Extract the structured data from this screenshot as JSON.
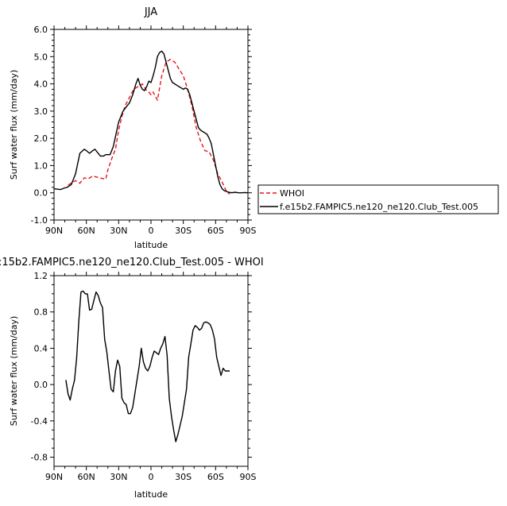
{
  "chart_data": [
    {
      "type": "line",
      "title": "JJA",
      "xlabel": "latitude",
      "ylabel": "Surf water flux (mm/day)",
      "xlim": [
        90,
        -90
      ],
      "ylim": [
        -1.0,
        6.0
      ],
      "xticks": [
        90,
        60,
        30,
        0,
        -30,
        -60,
        -90
      ],
      "xtick_labels": [
        "90N",
        "60N",
        "30N",
        "0",
        "30S",
        "60S",
        "90S"
      ],
      "yticks": [
        -1.0,
        0.0,
        1.0,
        2.0,
        3.0,
        4.0,
        5.0,
        6.0
      ],
      "ytick_labels": [
        "-1.0",
        "0.0",
        "1.0",
        "2.0",
        "3.0",
        "4.0",
        "5.0",
        "6.0"
      ],
      "legend_position": "right",
      "series": [
        {
          "name": "WHOI",
          "color": "#e8141e",
          "dash": "dashed",
          "x": [
            77,
            70,
            66,
            62,
            58,
            54,
            48,
            42,
            40,
            36,
            33,
            30,
            27,
            24,
            20,
            16,
            12,
            8,
            5,
            2,
            0,
            -2,
            -6,
            -10,
            -14,
            -18,
            -22,
            -26,
            -30,
            -34,
            -38,
            -42,
            -46,
            -50,
            -54,
            -58,
            -62,
            -66,
            -70,
            -73
          ],
          "y": [
            0.28,
            0.45,
            0.35,
            0.55,
            0.52,
            0.62,
            0.55,
            0.5,
            0.85,
            1.3,
            1.6,
            2.3,
            2.8,
            3.2,
            3.5,
            3.8,
            3.9,
            4.0,
            3.8,
            3.7,
            3.6,
            3.7,
            3.4,
            4.3,
            4.8,
            4.9,
            4.8,
            4.55,
            4.3,
            3.8,
            3.2,
            2.4,
            1.9,
            1.55,
            1.5,
            1.2,
            0.7,
            0.4,
            0.05,
            -0.05
          ]
        },
        {
          "name": "f.e15b2.FAMPIC5.ne120_ne120.Club_Test.005",
          "color": "#000000",
          "dash": "solid",
          "x": [
            90,
            88,
            86,
            84,
            82,
            80,
            78,
            74,
            70,
            66,
            62,
            60,
            57,
            54,
            52,
            50,
            47,
            44,
            42,
            38,
            35,
            30,
            26,
            23,
            20,
            17,
            14,
            12,
            10,
            8,
            6,
            4,
            2,
            0,
            -2,
            -4,
            -6,
            -8,
            -10,
            -12,
            -14,
            -16,
            -18,
            -20,
            -22,
            -24,
            -26,
            -28,
            -30,
            -32,
            -34,
            -36,
            -38,
            -40,
            -42,
            -44,
            -46,
            -48,
            -50,
            -52,
            -54,
            -56,
            -58,
            -60,
            -62,
            -64,
            -66,
            -68,
            -70,
            -72,
            -75,
            -78,
            -81,
            -84,
            -87,
            -90
          ],
          "y": [
            0.15,
            0.14,
            0.13,
            0.12,
            0.15,
            0.18,
            0.2,
            0.3,
            0.7,
            1.45,
            1.6,
            1.55,
            1.45,
            1.55,
            1.6,
            1.5,
            1.35,
            1.35,
            1.4,
            1.4,
            1.7,
            2.6,
            3.0,
            3.15,
            3.3,
            3.6,
            4.0,
            4.2,
            3.95,
            3.8,
            3.75,
            3.9,
            4.1,
            4.05,
            4.3,
            4.6,
            5.0,
            5.15,
            5.2,
            5.1,
            4.8,
            4.5,
            4.2,
            4.05,
            4.0,
            3.95,
            3.9,
            3.85,
            3.8,
            3.85,
            3.8,
            3.6,
            3.3,
            3.0,
            2.7,
            2.4,
            2.3,
            2.25,
            2.2,
            2.15,
            2.0,
            1.8,
            1.4,
            1.0,
            0.6,
            0.3,
            0.15,
            0.08,
            0.05,
            0.02,
            0.0,
            0.02,
            0.0,
            0.0,
            0.01,
            0.0
          ]
        }
      ]
    },
    {
      "type": "line",
      "title": ":15b2.FAMPIC5.ne120_ne120.Club_Test.005 - WHOI",
      "xlabel": "latitude",
      "ylabel": "Surf water flux (mm/day)",
      "xlim": [
        90,
        -90
      ],
      "ylim": [
        -0.9,
        1.2
      ],
      "xticks": [
        90,
        60,
        30,
        0,
        -30,
        -60,
        -90
      ],
      "xtick_labels": [
        "90N",
        "60N",
        "30N",
        "0",
        "30S",
        "60S",
        "90S"
      ],
      "yticks": [
        -0.8,
        -0.4,
        0.0,
        0.4,
        0.8,
        1.2
      ],
      "ytick_labels": [
        "-0.8",
        "-0.4",
        "0.0",
        "0.4",
        "0.8",
        "1.2"
      ],
      "series": [
        {
          "color": "#000000",
          "dash": "solid",
          "x": [
            79,
            77,
            75,
            73,
            71,
            69,
            67,
            65,
            63,
            61,
            59,
            57,
            55,
            53,
            51,
            49,
            47,
            45,
            43,
            41,
            39,
            37,
            35,
            33,
            31,
            29,
            27,
            25,
            23,
            21,
            19,
            17,
            15,
            13,
            11,
            9,
            7,
            5,
            3,
            1,
            -1,
            -3,
            -5,
            -7,
            -9,
            -11,
            -13,
            -15,
            -17,
            -19,
            -21,
            -23,
            -25,
            -27,
            -29,
            -31,
            -33,
            -35,
            -37,
            -39,
            -41,
            -43,
            -45,
            -47,
            -49,
            -51,
            -53,
            -55,
            -57,
            -59,
            -61,
            -63,
            -65,
            -67,
            -69,
            -71,
            -73
          ],
          "y": [
            0.05,
            -0.1,
            -0.17,
            -0.05,
            0.05,
            0.3,
            0.7,
            1.02,
            1.03,
            1.0,
            1.0,
            0.82,
            0.83,
            0.93,
            1.02,
            0.98,
            0.9,
            0.85,
            0.5,
            0.36,
            0.15,
            -0.05,
            -0.08,
            0.15,
            0.27,
            0.2,
            -0.15,
            -0.2,
            -0.22,
            -0.32,
            -0.32,
            -0.25,
            -0.1,
            0.05,
            0.2,
            0.4,
            0.25,
            0.18,
            0.15,
            0.2,
            0.3,
            0.37,
            0.35,
            0.33,
            0.4,
            0.45,
            0.53,
            0.32,
            -0.15,
            -0.35,
            -0.5,
            -0.63,
            -0.55,
            -0.45,
            -0.35,
            -0.2,
            -0.05,
            0.3,
            0.45,
            0.6,
            0.65,
            0.63,
            0.6,
            0.62,
            0.68,
            0.69,
            0.68,
            0.66,
            0.6,
            0.5,
            0.3,
            0.2,
            0.1,
            0.18,
            0.15,
            0.15,
            0.15
          ]
        }
      ]
    }
  ],
  "legend": {
    "items": [
      {
        "label": "WHOI"
      },
      {
        "label": "f.e15b2.FAMPIC5.ne120_ne120.Club_Test.005"
      }
    ]
  }
}
